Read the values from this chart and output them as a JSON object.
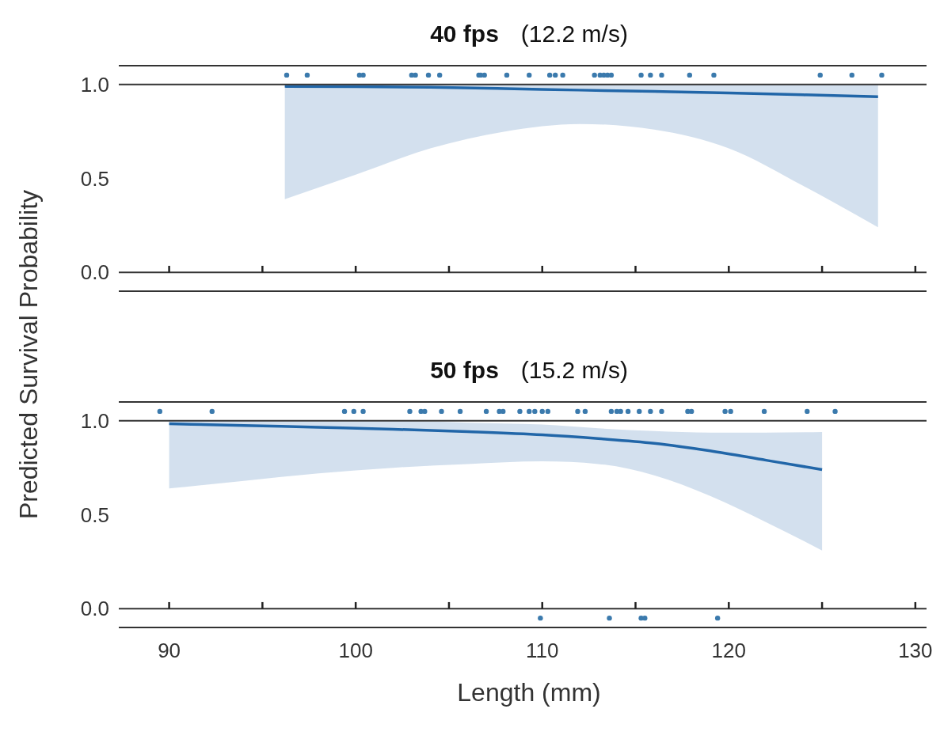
{
  "chart_data": [
    {
      "type": "line",
      "title": "40 fps",
      "subtitle": "(12.2 m/s)",
      "ylabel": "Predicted Survival Probability",
      "xlim": [
        87.3,
        130.6
      ],
      "xticks": [
        {
          "value": 90,
          "label": null
        },
        {
          "value": 95,
          "label": null
        },
        {
          "value": 100,
          "label": null
        },
        {
          "value": 105,
          "label": null
        },
        {
          "value": 110,
          "label": null
        },
        {
          "value": 115,
          "label": null
        },
        {
          "value": 120,
          "label": null
        },
        {
          "value": 125,
          "label": null
        },
        {
          "value": 130,
          "label": null
        }
      ],
      "ylim": [
        -0.1,
        1.1
      ],
      "yticks": [
        {
          "value": 0,
          "label": "0.0"
        },
        {
          "value": 0.5,
          "label": "0.5"
        },
        {
          "value": 1,
          "label": "1.0"
        }
      ],
      "tick_labels": "y",
      "ref_lines": [
        {
          "axis": "y",
          "value": 0,
          "label": null,
          "color": "#333333"
        },
        {
          "axis": "y",
          "value": 1,
          "label": null,
          "color": "#333333"
        }
      ],
      "series": [
        {
          "color": "#2166a8",
          "x": [
            96.2,
            100,
            104,
            108,
            112,
            116,
            120,
            124,
            128
          ],
          "values": [
            0.99,
            0.988,
            0.985,
            0.978,
            0.97,
            0.963,
            0.955,
            0.945,
            0.935
          ],
          "lower": [
            0.39,
            0.52,
            0.66,
            0.75,
            0.79,
            0.76,
            0.66,
            0.46,
            0.24
          ],
          "upper": [
            1,
            1,
            1,
            1,
            1,
            1,
            1,
            1,
            1
          ]
        },
        {
          "type": "scatter",
          "color": "#3b7aad",
          "marker": "circle",
          "x": [
            96.3,
            97.4,
            100.2,
            100.4,
            103.0,
            103.2,
            103.9,
            104.5,
            106.6,
            106.7,
            106.9,
            108.1,
            109.3,
            110.4,
            110.7,
            111.1,
            112.8,
            113.1,
            113.3,
            113.5,
            113.7,
            115.3,
            115.8,
            116.4,
            117.9,
            119.2,
            124.9,
            126.6,
            128.2
          ],
          "values": [
            1.05,
            1.05,
            1.05,
            1.05,
            1.05,
            1.05,
            1.05,
            1.05,
            1.05,
            1.05,
            1.05,
            1.05,
            1.05,
            1.05,
            1.05,
            1.05,
            1.05,
            1.05,
            1.05,
            1.05,
            1.05,
            1.05,
            1.05,
            1.05,
            1.05,
            1.05,
            1.05,
            1.05,
            1.05
          ]
        }
      ]
    },
    {
      "type": "line",
      "title": "50 fps",
      "subtitle": "(15.2 m/s)",
      "xlabel": "Length (mm)",
      "xlim": [
        87.3,
        130.6
      ],
      "xticks": [
        90,
        {
          "value": 95,
          "label": null
        },
        100,
        {
          "value": 105,
          "label": null
        },
        110,
        {
          "value": 115,
          "label": null
        },
        120,
        {
          "value": 125,
          "label": null
        },
        130
      ],
      "ylim": [
        -0.1,
        1.1
      ],
      "yticks": [
        {
          "value": 0,
          "label": "0.0"
        },
        {
          "value": 0.5,
          "label": "0.5"
        },
        {
          "value": 1,
          "label": "1.0"
        }
      ],
      "ref_lines": [
        {
          "axis": "y",
          "value": 0,
          "label": null,
          "color": "#333333"
        },
        {
          "axis": "y",
          "value": 1,
          "label": null,
          "color": "#333333"
        }
      ],
      "series": [
        {
          "color": "#2166a8",
          "x": [
            90,
            94,
            98,
            102,
            106,
            110,
            113,
            116,
            119,
            122,
            125
          ],
          "values": [
            0.984,
            0.975,
            0.965,
            0.955,
            0.942,
            0.925,
            0.905,
            0.88,
            0.84,
            0.79,
            0.74
          ],
          "lower": [
            0.64,
            0.68,
            0.72,
            0.75,
            0.77,
            0.784,
            0.77,
            0.71,
            0.6,
            0.46,
            0.31
          ],
          "upper": [
            1,
            1,
            1,
            1,
            0.99,
            0.98,
            0.96,
            0.945,
            0.937,
            0.937,
            0.94
          ]
        },
        {
          "type": "scatter",
          "color": "#3b7aad",
          "marker": "circle",
          "x": [
            89.5,
            92.3,
            99.4,
            99.9,
            100.4,
            102.9,
            103.5,
            103.7,
            104.6,
            105.6,
            107.0,
            107.7,
            107.9,
            108.8,
            109.3,
            109.6,
            110.0,
            110.3,
            111.9,
            112.3,
            113.7,
            114.0,
            114.2,
            114.6,
            115.2,
            115.8,
            116.4,
            117.8,
            118.0,
            119.8,
            120.1,
            121.9,
            124.2,
            125.7
          ],
          "values": [
            1.05,
            1.05,
            1.05,
            1.05,
            1.05,
            1.05,
            1.05,
            1.05,
            1.05,
            1.05,
            1.05,
            1.05,
            1.05,
            1.05,
            1.05,
            1.05,
            1.05,
            1.05,
            1.05,
            1.05,
            1.05,
            1.05,
            1.05,
            1.05,
            1.05,
            1.05,
            1.05,
            1.05,
            1.05,
            1.05,
            1.05,
            1.05,
            1.05,
            1.05
          ]
        },
        {
          "type": "scatter",
          "color": "#3b7aad",
          "marker": "circle",
          "x": [
            109.9,
            113.6,
            115.3,
            115.5,
            119.4
          ],
          "values": [
            -0.05,
            -0.05,
            -0.05,
            -0.05,
            -0.05
          ]
        }
      ]
    }
  ]
}
